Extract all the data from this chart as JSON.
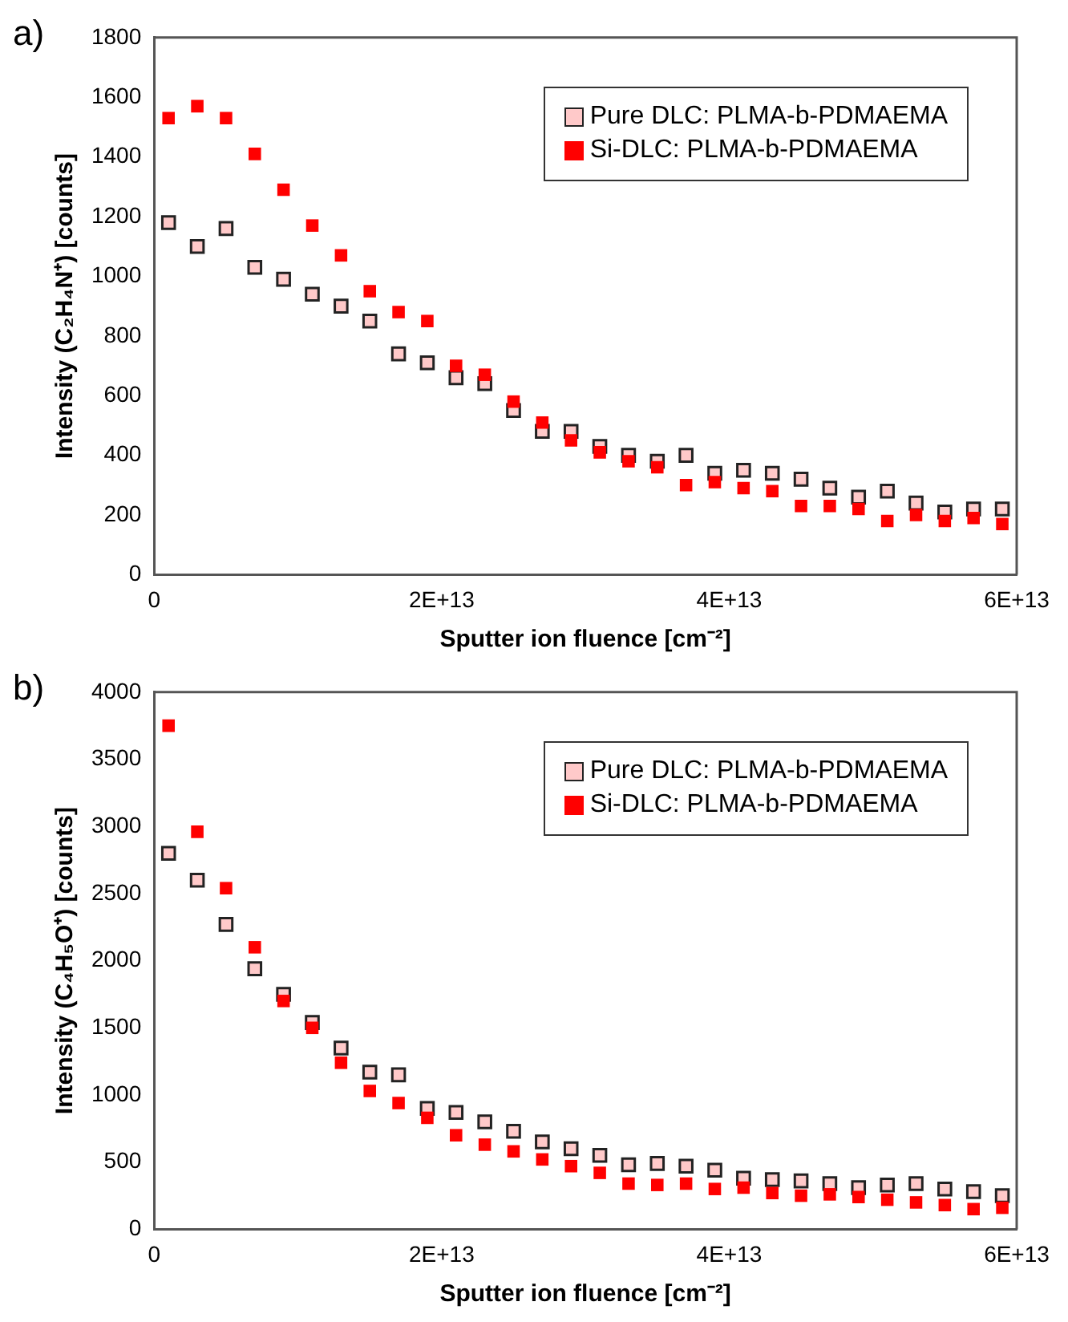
{
  "chart_data": [
    {
      "type": "scatter",
      "annotations": [
        "a)"
      ],
      "xlabel": "Sputter ion fluence [cm⁻²]",
      "ylabel": "Intensity (C₂H₄N⁺) [counts]",
      "marker": "square",
      "legend": "top right",
      "grid": false,
      "x": [
        1000000000000.0,
        3000000000000.0,
        5000000000000.0,
        7000000000000.0,
        9000000000000.0,
        11000000000000.0,
        13000000000000.0,
        15000000000000.0,
        17000000000000.0,
        19000000000000.0,
        21000000000000.0,
        23000000000000.0,
        25000000000000.0,
        27000000000000.0,
        29000000000000.0,
        31000000000000.0,
        33000000000000.0,
        35000000000000.0,
        37000000000000.0,
        39000000000000.0,
        41000000000000.0,
        43000000000000.0,
        45000000000000.0,
        47000000000000.0,
        49000000000000.0,
        51000000000000.0,
        53000000000000.0,
        55000000000000.0,
        57000000000000.0,
        59000000000000.0
      ],
      "xlim": [
        0,
        60000000000000.0
      ],
      "xticks": [
        0,
        {
          "value": 20000000000000.0,
          "label": "2E+13"
        },
        {
          "value": 40000000000000.0,
          "label": "4E+13"
        },
        {
          "value": 60000000000000.0,
          "label": "6E+13"
        }
      ],
      "ylim": [
        0,
        1800
      ],
      "yticks": [
        0,
        200,
        400,
        600,
        800,
        1000,
        1200,
        1400,
        1600,
        1800
      ],
      "series": [
        {
          "name": "Pure DLC: PLMA-b-PDMAEMA",
          "color": "#ffc9c9",
          "values": [
            1180,
            1100,
            1160,
            1030,
            990,
            940,
            900,
            850,
            740,
            710,
            660,
            640,
            550,
            480,
            480,
            430,
            400,
            380,
            400,
            340,
            350,
            340,
            320,
            290,
            260,
            280,
            240,
            210,
            220,
            220
          ]
        },
        {
          "name": "Si-DLC: PLMA-b-PDMAEMA",
          "color": "#ff0000",
          "values": [
            1530,
            1570,
            1530,
            1410,
            1290,
            1170,
            1070,
            950,
            880,
            850,
            700,
            670,
            580,
            510,
            450,
            410,
            380,
            360,
            300,
            310,
            290,
            280,
            230,
            230,
            220,
            180,
            200,
            180,
            190,
            170
          ]
        }
      ]
    },
    {
      "type": "scatter",
      "annotations": [
        "b)"
      ],
      "xlabel": "Sputter ion fluence [cm⁻²]",
      "ylabel": "Intensity (C₄H₅O⁺) [counts]",
      "marker": "square",
      "legend": "top right",
      "grid": false,
      "x": [
        1000000000000.0,
        3000000000000.0,
        5000000000000.0,
        7000000000000.0,
        9000000000000.0,
        11000000000000.0,
        13000000000000.0,
        15000000000000.0,
        17000000000000.0,
        19000000000000.0,
        21000000000000.0,
        23000000000000.0,
        25000000000000.0,
        27000000000000.0,
        29000000000000.0,
        31000000000000.0,
        33000000000000.0,
        35000000000000.0,
        37000000000000.0,
        39000000000000.0,
        41000000000000.0,
        43000000000000.0,
        45000000000000.0,
        47000000000000.0,
        49000000000000.0,
        51000000000000.0,
        53000000000000.0,
        55000000000000.0,
        57000000000000.0,
        59000000000000.0
      ],
      "xlim": [
        0,
        60000000000000.0
      ],
      "xticks": [
        0,
        {
          "value": 20000000000000.0,
          "label": "2E+13"
        },
        {
          "value": 40000000000000.0,
          "label": "4E+13"
        },
        {
          "value": 60000000000000.0,
          "label": "6E+13"
        }
      ],
      "ylim": [
        0,
        4000
      ],
      "yticks": [
        0,
        500,
        1000,
        1500,
        2000,
        2500,
        3000,
        3500,
        4000
      ],
      "series": [
        {
          "name": "Pure DLC: PLMA-b-PDMAEMA",
          "color": "#ffc9c9",
          "values": [
            2800,
            2600,
            2270,
            1940,
            1750,
            1540,
            1350,
            1170,
            1150,
            900,
            870,
            800,
            730,
            650,
            600,
            550,
            480,
            490,
            470,
            440,
            380,
            370,
            360,
            340,
            310,
            330,
            340,
            300,
            280,
            250
          ]
        },
        {
          "name": "Si-DLC: PLMA-b-PDMAEMA",
          "color": "#ff0000",
          "values": [
            3750,
            2960,
            2540,
            2100,
            1700,
            1500,
            1240,
            1030,
            940,
            830,
            700,
            630,
            580,
            520,
            470,
            420,
            340,
            330,
            340,
            300,
            310,
            270,
            250,
            260,
            240,
            220,
            200,
            180,
            150,
            160
          ]
        }
      ]
    }
  ]
}
